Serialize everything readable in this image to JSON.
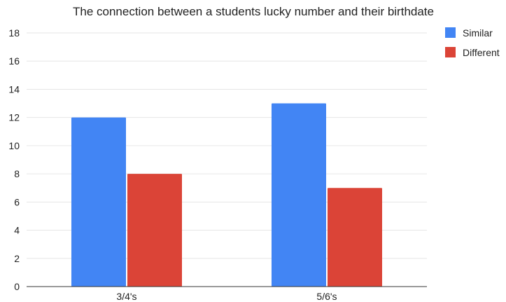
{
  "chart_data": {
    "type": "bar",
    "title": "The connection between a students lucky number and their birthdate",
    "xlabel": "",
    "ylabel": "",
    "categories": [
      "3/4's",
      "5/6's"
    ],
    "series": [
      {
        "name": "Similar",
        "values": [
          12,
          13
        ],
        "color": "#4285f4"
      },
      {
        "name": "Different",
        "values": [
          8,
          7
        ],
        "color": "#db4437"
      }
    ],
    "ylim": [
      0,
      18
    ],
    "yticks": [
      0,
      2,
      4,
      6,
      8,
      10,
      12,
      14,
      16,
      18
    ],
    "grid": true,
    "legend_position": "right"
  }
}
